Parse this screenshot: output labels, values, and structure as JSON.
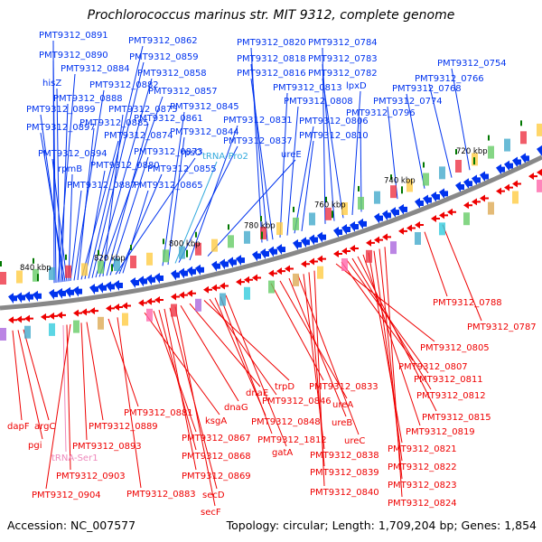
{
  "title": "Prochlorococcus marinus str. MIT 9312, complete genome",
  "footer": {
    "accession": "Accession: NC_007577",
    "topology": "Topology: circular; Length: 1,709,204 bp; Genes: 1,854"
  },
  "colors": {
    "forward": "#0033ee",
    "reverse": "#ee0000",
    "trna_forward": "#33aadd",
    "trna_reverse": "#ee88bb",
    "backbone": "#888888",
    "tick": "#007700"
  },
  "kbp_ticks": [
    {
      "label": "840 kbp"
    },
    {
      "label": "820 kbp"
    },
    {
      "label": "800 kbp"
    },
    {
      "label": "780 kbp"
    },
    {
      "label": "760 kbp"
    },
    {
      "label": "740 kbp"
    },
    {
      "label": "720 kbp"
    }
  ],
  "forward_labels": [
    {
      "text": "PMT9312_0891",
      "kind": "gene"
    },
    {
      "text": "PMT9312_0890",
      "kind": "gene"
    },
    {
      "text": "PMT9312_0884",
      "kind": "gene"
    },
    {
      "text": "hisZ",
      "kind": "gene"
    },
    {
      "text": "PMT9312_0888",
      "kind": "gene"
    },
    {
      "text": "PMT9312_0899",
      "kind": "gene"
    },
    {
      "text": "PMT9312_0897",
      "kind": "gene"
    },
    {
      "text": "PMT9312_0894",
      "kind": "gene"
    },
    {
      "text": "rpmB",
      "kind": "gene"
    },
    {
      "text": "PMT9312_0887",
      "kind": "gene"
    },
    {
      "text": "PMT9312_0882",
      "kind": "gene"
    },
    {
      "text": "PMT9312_0885",
      "kind": "gene"
    },
    {
      "text": "PMT9312_0874",
      "kind": "gene"
    },
    {
      "text": "PMT9312_0880",
      "kind": "gene"
    },
    {
      "text": "PMT9312_0862",
      "kind": "gene"
    },
    {
      "text": "PMT9312_0859",
      "kind": "gene"
    },
    {
      "text": "PMT9312_0858",
      "kind": "gene"
    },
    {
      "text": "PMT9312_0857",
      "kind": "gene"
    },
    {
      "text": "PMT9312_0875",
      "kind": "gene"
    },
    {
      "text": "PMT9312_0861",
      "kind": "gene"
    },
    {
      "text": "PMT9312_0873",
      "kind": "gene"
    },
    {
      "text": "rpsO",
      "kind": "gene"
    },
    {
      "text": "PMT9312_0855",
      "kind": "gene"
    },
    {
      "text": "PMT9312_0865",
      "kind": "gene"
    },
    {
      "text": "PMT9312_0845",
      "kind": "gene"
    },
    {
      "text": "PMT9312_0844",
      "kind": "gene"
    },
    {
      "text": "tRNA-Pro2",
      "kind": "trna"
    },
    {
      "text": "PMT9312_0837",
      "kind": "gene"
    },
    {
      "text": "PMT9312_0831",
      "kind": "gene"
    },
    {
      "text": "ureE",
      "kind": "gene"
    },
    {
      "text": "PMT9312_0820",
      "kind": "gene"
    },
    {
      "text": "PMT9312_0818",
      "kind": "gene"
    },
    {
      "text": "PMT9312_0816",
      "kind": "gene"
    },
    {
      "text": "PMT9312_0813",
      "kind": "gene"
    },
    {
      "text": "PMT9312_0808",
      "kind": "gene"
    },
    {
      "text": "PMT9312_0806",
      "kind": "gene"
    },
    {
      "text": "PMT9312_0810",
      "kind": "gene"
    },
    {
      "text": "PMT9312_0784",
      "kind": "gene"
    },
    {
      "text": "PMT9312_0783",
      "kind": "gene"
    },
    {
      "text": "PMT9312_0782",
      "kind": "gene"
    },
    {
      "text": "lpxD",
      "kind": "gene"
    },
    {
      "text": "PMT9312_0796",
      "kind": "gene"
    },
    {
      "text": "PMT9312_0774",
      "kind": "gene"
    },
    {
      "text": "PMT9312_0768",
      "kind": "gene"
    },
    {
      "text": "PMT9312_0766",
      "kind": "gene"
    },
    {
      "text": "PMT9312_0754",
      "kind": "gene"
    }
  ],
  "reverse_labels": [
    {
      "text": "dapF",
      "kind": "gene"
    },
    {
      "text": "pgi",
      "kind": "gene"
    },
    {
      "text": "argC",
      "kind": "gene"
    },
    {
      "text": "tRNA-Ser1",
      "kind": "trna"
    },
    {
      "text": "PMT9312_0903",
      "kind": "gene"
    },
    {
      "text": "PMT9312_0904",
      "kind": "gene"
    },
    {
      "text": "PMT9312_0893",
      "kind": "gene"
    },
    {
      "text": "PMT9312_0889",
      "kind": "gene"
    },
    {
      "text": "PMT9312_0881",
      "kind": "gene"
    },
    {
      "text": "PMT9312_0883",
      "kind": "gene"
    },
    {
      "text": "ksgA",
      "kind": "gene"
    },
    {
      "text": "PMT9312_0867",
      "kind": "gene"
    },
    {
      "text": "PMT9312_0868",
      "kind": "gene"
    },
    {
      "text": "PMT9312_0869",
      "kind": "gene"
    },
    {
      "text": "secD",
      "kind": "gene"
    },
    {
      "text": "secF",
      "kind": "gene"
    },
    {
      "text": "dnaG",
      "kind": "gene"
    },
    {
      "text": "dnaE",
      "kind": "gene"
    },
    {
      "text": "trpD",
      "kind": "gene"
    },
    {
      "text": "PMT9312_0846",
      "kind": "gene"
    },
    {
      "text": "PMT9312_0848",
      "kind": "gene"
    },
    {
      "text": "PMT9312_1812",
      "kind": "gene"
    },
    {
      "text": "gatA",
      "kind": "gene"
    },
    {
      "text": "PMT9312_0833",
      "kind": "gene"
    },
    {
      "text": "ureA",
      "kind": "gene"
    },
    {
      "text": "ureB",
      "kind": "gene"
    },
    {
      "text": "ureC",
      "kind": "gene"
    },
    {
      "text": "PMT9312_0838",
      "kind": "gene"
    },
    {
      "text": "PMT9312_0839",
      "kind": "gene"
    },
    {
      "text": "PMT9312_0840",
      "kind": "gene"
    },
    {
      "text": "PMT9312_0788",
      "kind": "gene"
    },
    {
      "text": "PMT9312_0787",
      "kind": "gene"
    },
    {
      "text": "PMT9312_0805",
      "kind": "gene"
    },
    {
      "text": "PMT9312_0807",
      "kind": "gene"
    },
    {
      "text": "PMT9312_0811",
      "kind": "gene"
    },
    {
      "text": "PMT9312_0812",
      "kind": "gene"
    },
    {
      "text": "PMT9312_0815",
      "kind": "gene"
    },
    {
      "text": "PMT9312_0819",
      "kind": "gene"
    },
    {
      "text": "PMT9312_0821",
      "kind": "gene"
    },
    {
      "text": "PMT9312_0822",
      "kind": "gene"
    },
    {
      "text": "PMT9312_0823",
      "kind": "gene"
    },
    {
      "text": "PMT9312_0824",
      "kind": "gene"
    }
  ]
}
